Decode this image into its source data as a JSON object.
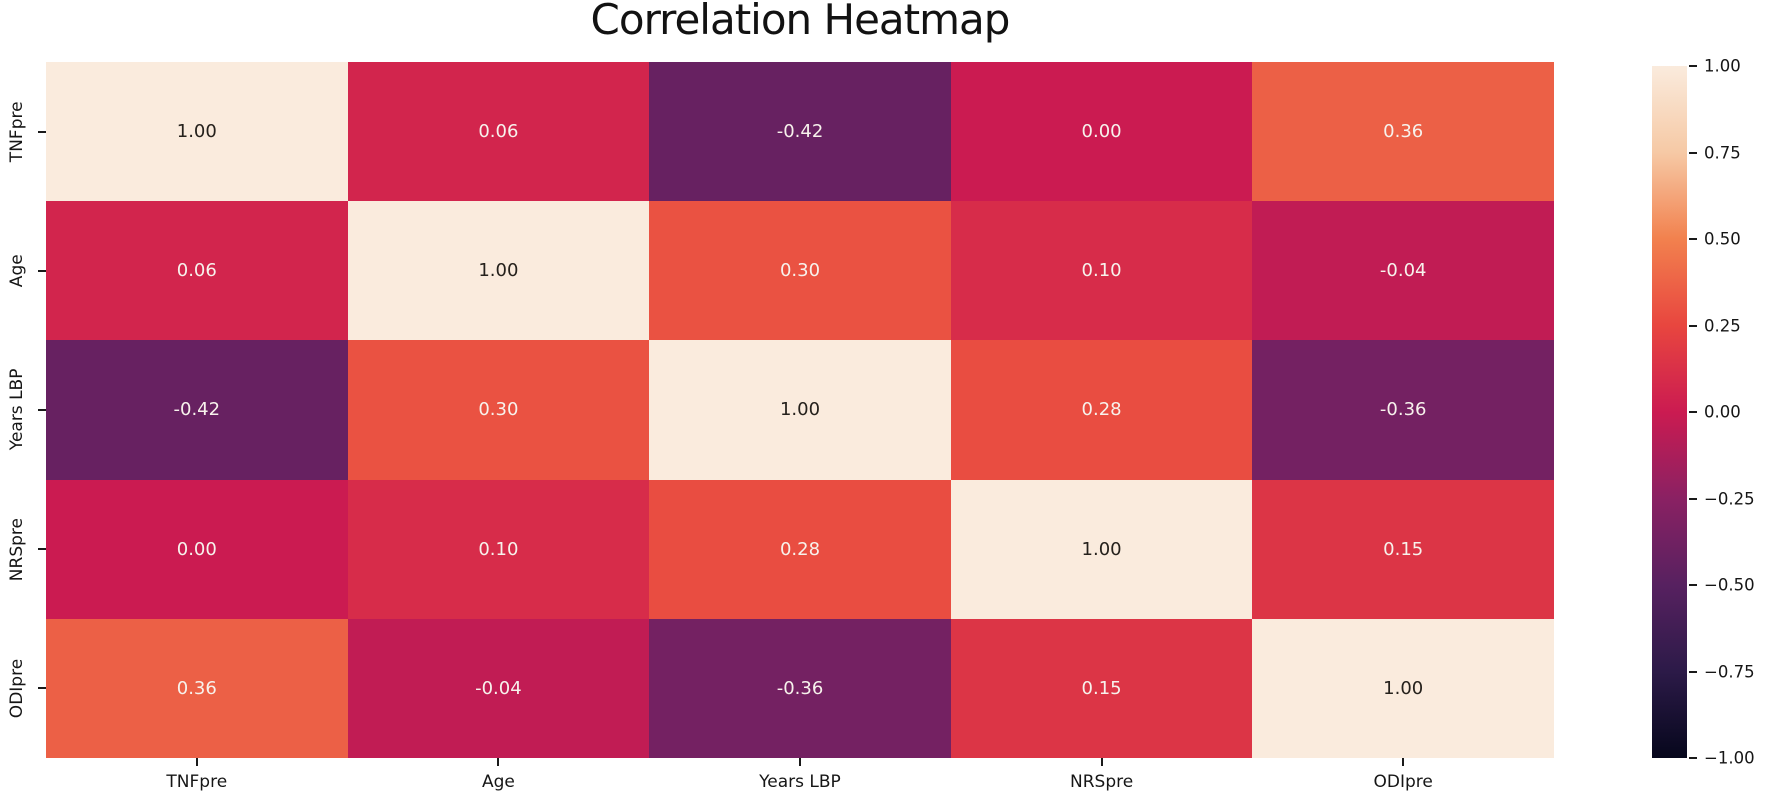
{
  "chart_data": {
    "type": "heatmap",
    "title": "Correlation Heatmap",
    "categories": [
      "TNFpre",
      "Age",
      "Years LBP",
      "NRSpre",
      "ODIpre"
    ],
    "matrix": [
      [
        1.0,
        0.06,
        -0.42,
        0.0,
        0.36
      ],
      [
        0.06,
        1.0,
        0.3,
        0.1,
        -0.04
      ],
      [
        -0.42,
        0.3,
        1.0,
        0.28,
        -0.36
      ],
      [
        0.0,
        0.1,
        0.28,
        1.0,
        0.15
      ],
      [
        0.36,
        -0.04,
        -0.36,
        0.15,
        1.0
      ]
    ],
    "vmin": -1.0,
    "vmax": 1.0,
    "value_decimals": 2,
    "grid": false,
    "legend_position": "right-colorbar",
    "colormap": {
      "name": "rocket",
      "stops": [
        {
          "t": 0.0,
          "color": "#06071C"
        },
        {
          "t": 0.125,
          "color": "#2C1A48"
        },
        {
          "t": 0.25,
          "color": "#572160"
        },
        {
          "t": 0.375,
          "color": "#8A2163"
        },
        {
          "t": 0.5,
          "color": "#CB1B51"
        },
        {
          "t": 0.625,
          "color": "#E8463F"
        },
        {
          "t": 0.75,
          "color": "#F2814E"
        },
        {
          "t": 0.875,
          "color": "#F6C9A5"
        },
        {
          "t": 1.0,
          "color": "#FAEBDD"
        }
      ]
    },
    "annotation_colors": {
      "dark": "#25211c",
      "light": "#f7f2ec",
      "dark_text_threshold_t": 0.76
    },
    "colorbar_ticks": [
      {
        "value": 1.0,
        "label": "1.00"
      },
      {
        "value": 0.75,
        "label": "0.75"
      },
      {
        "value": 0.5,
        "label": "0.50"
      },
      {
        "value": 0.25,
        "label": "0.25"
      },
      {
        "value": 0.0,
        "label": "0.00"
      },
      {
        "value": -0.25,
        "label": "−0.25"
      },
      {
        "value": -0.5,
        "label": "−0.50"
      },
      {
        "value": -0.75,
        "label": "−0.75"
      },
      {
        "value": -1.0,
        "label": "−1.00"
      }
    ]
  }
}
